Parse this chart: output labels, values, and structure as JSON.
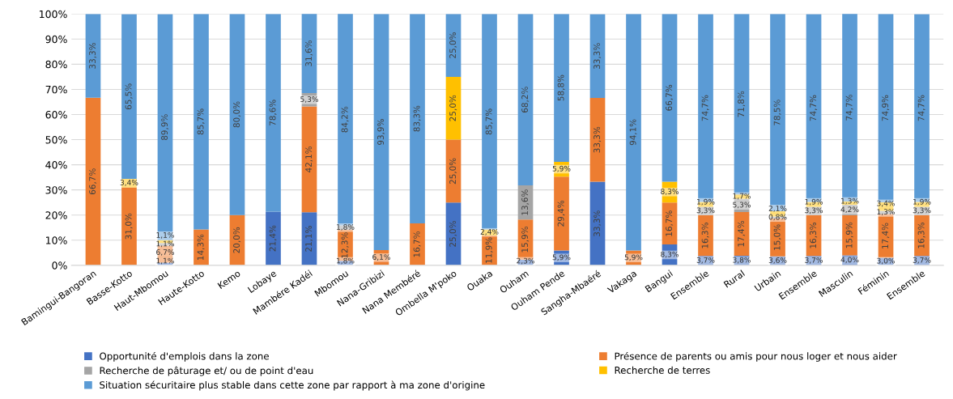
{
  "chart_data": {
    "type": "bar",
    "stacked": true,
    "categories": [
      "Bamingui-Bangoran",
      "Basse-Kotto",
      "Haut-Mbomou",
      "Haute-Kotto",
      "Kemo",
      "Lobaye",
      "Mambére Kadéi",
      "Mbomou",
      "Nana-Gribizi",
      "Nana Membéré",
      "Ombella M'poko",
      "Ouaka",
      "Ouham",
      "Ouham Pende",
      "Sangha-Mbaéré",
      "Vakaga",
      "Bangui",
      "Ensemble",
      "Rural",
      "Urbain",
      "Ensemble",
      "Masculin",
      "Féminin",
      "Ensemble"
    ],
    "series": [
      {
        "name": "Opportunité d'emplois dans la zone",
        "color": "#4472c4",
        "values": [
          0,
          0,
          1.1,
          0,
          0,
          21.4,
          21.1,
          1.8,
          0,
          0,
          25.0,
          0,
          2.3,
          5.9,
          33.3,
          0,
          8.3,
          3.7,
          3.8,
          3.6,
          3.7,
          4.0,
          3.0,
          3.7
        ],
        "value_labels": [
          null,
          null,
          "1,1%",
          null,
          null,
          "21,4%",
          "21,1%",
          "1,8%",
          null,
          null,
          "25,0%",
          null,
          "2,3%",
          "5,9%",
          "33,3%",
          null,
          "8,3%",
          "3,7%",
          "3,8%",
          "3,6%",
          "3,7%",
          "4,0%",
          "3,0%",
          "3,7%"
        ]
      },
      {
        "name": "Présence de parents ou amis pour nous loger et nous aider",
        "color": "#ed7d31",
        "values": [
          66.7,
          31.0,
          6.7,
          14.3,
          20.0,
          0,
          42.1,
          12.3,
          6.1,
          16.7,
          25.0,
          11.9,
          15.9,
          29.4,
          33.3,
          5.9,
          16.7,
          16.3,
          17.4,
          15.0,
          16.3,
          15.9,
          17.4,
          16.3
        ],
        "value_labels": [
          "66,7%",
          "31,0%",
          "6,7%",
          "14,3%",
          "20,0%",
          null,
          "42,1%",
          "12,3%",
          "6,1%",
          "16,7%",
          "25,0%",
          "11,9%",
          "15,9%",
          "29,4%",
          "33,3%",
          "5,9%",
          "16,7%",
          "16,3%",
          "17,4%",
          "15,0%",
          "16,3%",
          "15,9%",
          "17,4%",
          "16,3%"
        ]
      },
      {
        "name": "Recherche de pâturage et/ ou de point d'eau",
        "color": "#a5a5a5",
        "values": [
          0,
          0,
          1.1,
          0,
          0,
          0,
          5.3,
          1.8,
          0,
          0,
          0,
          0,
          13.6,
          0,
          0,
          0,
          0,
          3.3,
          5.3,
          0.8,
          3.3,
          4.2,
          1.3,
          3.3
        ],
        "value_labels": [
          null,
          null,
          "1,1%",
          null,
          null,
          null,
          "5,3%",
          "1,8%",
          null,
          null,
          null,
          null,
          "13,6%",
          null,
          null,
          null,
          null,
          "3,3%",
          "5,3%",
          "0,8%",
          "3,3%",
          "4,2%",
          "1,3%",
          "3,3%"
        ]
      },
      {
        "name": "Recherche de terres",
        "color": "#ffc000",
        "values": [
          0,
          3.4,
          1.1,
          0,
          0,
          0,
          0,
          0,
          0,
          0,
          25.0,
          2.4,
          0,
          5.9,
          0,
          0,
          8.3,
          1.9,
          1.7,
          2.1,
          1.9,
          1.3,
          3.4,
          1.9
        ],
        "value_labels": [
          null,
          "3,4%",
          "1,1%",
          null,
          null,
          null,
          null,
          null,
          null,
          null,
          "25,0%",
          "2,4%",
          null,
          "5,9%",
          null,
          null,
          "8,3%",
          "1,9%",
          "1,7%",
          "2,1%",
          "1,9%",
          "1,3%",
          "3,4%",
          "1,9%"
        ]
      },
      {
        "name": "Situation sécuritaire plus stable dans cette zone par rapport à ma zone d'origine",
        "color": "#5b9bd5",
        "values": [
          33.3,
          65.5,
          89.9,
          85.7,
          80.0,
          78.6,
          31.6,
          84.2,
          93.9,
          83.3,
          25.0,
          85.7,
          68.2,
          58.8,
          33.3,
          94.1,
          66.7,
          74.7,
          71.8,
          78.5,
          74.7,
          74.7,
          74.9,
          74.7
        ],
        "value_labels": [
          "33,3%",
          "65,5%",
          "89,9%",
          "85,7%",
          "80,0%",
          "78,6%",
          "31,6%",
          "84,2%",
          "93,9%",
          "83,3%",
          "25,0%",
          "85,7%",
          "68,2%",
          "58,8%",
          "33,3%",
          "94,1%",
          "66,7%",
          "74,7%",
          "71,8%",
          "78,5%",
          "74,7%",
          "74,7%",
          "74,9%",
          "74,7%"
        ]
      }
    ],
    "ylim": [
      0,
      100
    ],
    "yticks": [
      {
        "value": 0,
        "label": "0%"
      },
      {
        "value": 10,
        "label": "10%"
      },
      {
        "value": 20,
        "label": "20%"
      },
      {
        "value": 30,
        "label": "30%"
      },
      {
        "value": 40,
        "label": "40%"
      },
      {
        "value": 50,
        "label": "50%"
      },
      {
        "value": 60,
        "label": "60%"
      },
      {
        "value": 70,
        "label": "70%"
      },
      {
        "value": 80,
        "label": "80%"
      },
      {
        "value": 90,
        "label": "90%"
      },
      {
        "value": 100,
        "label": "100%"
      }
    ],
    "grid": "y",
    "legend": "bottom"
  }
}
